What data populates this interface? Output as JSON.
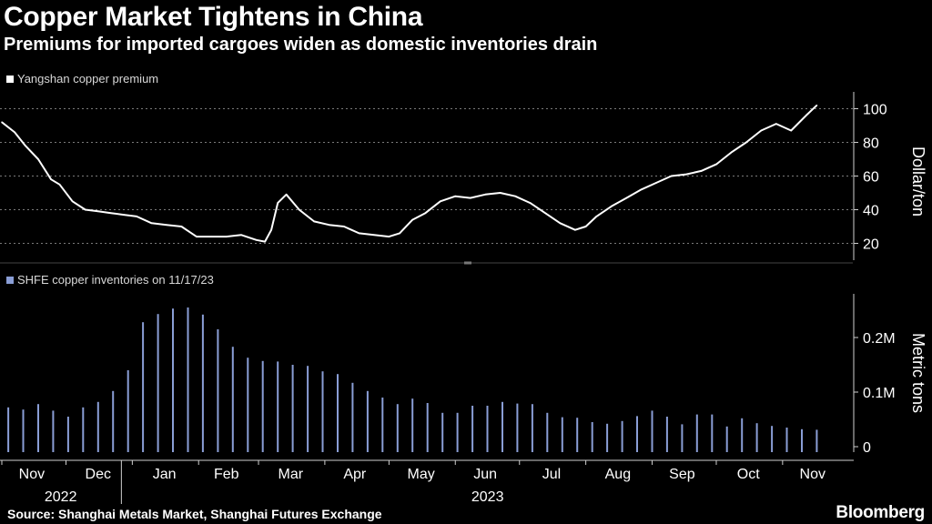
{
  "header": {
    "title": "Copper Market Tightens in China",
    "subtitle": "Premiums for imported cargoes widen as domestic inventories drain"
  },
  "footer": {
    "source": "Source: Shanghai Metals Market, Shanghai Futures Exchange",
    "brand": "Bloomberg"
  },
  "colors": {
    "background": "#000000",
    "premium_line": "#ffffff",
    "inventory_bars": "#8a9ed6",
    "axis": "#cfcfcf",
    "divider": "#555555"
  },
  "chart_data": [
    {
      "type": "line",
      "title": "Yangshan copper premium",
      "legend": "Yangshan copper premium",
      "ylabel": "Dollar/ton",
      "ylim": [
        10,
        110
      ],
      "yticks": [
        20,
        40,
        60,
        80,
        100
      ],
      "xlim": [
        "2022-11-01",
        "2023-11-30"
      ],
      "series": [
        {
          "name": "Yangshan copper premium",
          "x": [
            "2022-11-01",
            "2022-11-07",
            "2022-11-12",
            "2022-11-18",
            "2022-11-24",
            "2022-11-28",
            "2022-12-04",
            "2022-12-10",
            "2022-12-16",
            "2022-12-22",
            "2022-12-28",
            "2023-01-03",
            "2023-01-10",
            "2023-01-17",
            "2023-01-24",
            "2023-01-31",
            "2023-02-07",
            "2023-02-14",
            "2023-02-21",
            "2023-02-28",
            "2023-03-04",
            "2023-03-07",
            "2023-03-10",
            "2023-03-14",
            "2023-03-20",
            "2023-03-27",
            "2023-04-03",
            "2023-04-10",
            "2023-04-17",
            "2023-04-24",
            "2023-05-01",
            "2023-05-06",
            "2023-05-12",
            "2023-05-18",
            "2023-05-25",
            "2023-06-01",
            "2023-06-08",
            "2023-06-15",
            "2023-06-22",
            "2023-06-29",
            "2023-07-06",
            "2023-07-13",
            "2023-07-20",
            "2023-07-27",
            "2023-08-01",
            "2023-08-06",
            "2023-08-13",
            "2023-08-20",
            "2023-08-27",
            "2023-09-03",
            "2023-09-10",
            "2023-09-17",
            "2023-09-24",
            "2023-10-01",
            "2023-10-08",
            "2023-10-15",
            "2023-10-22",
            "2023-10-29",
            "2023-11-05",
            "2023-11-12",
            "2023-11-17"
          ],
          "values": [
            92,
            86,
            78,
            70,
            58,
            55,
            45,
            40,
            39,
            38,
            37,
            36,
            32,
            31,
            30,
            24,
            24,
            24,
            25,
            22,
            21,
            28,
            44,
            49,
            40,
            33,
            31,
            30,
            26,
            25,
            24,
            26,
            34,
            38,
            45,
            48,
            47,
            49,
            50,
            48,
            44,
            38,
            32,
            28,
            30,
            36,
            42,
            47,
            52,
            56,
            60,
            61,
            63,
            67,
            74,
            80,
            87,
            91,
            87,
            96,
            102
          ]
        }
      ]
    },
    {
      "type": "bar",
      "title": "SHFE copper inventories on 11/17/23",
      "legend": "SHFE copper inventories on 11/17/23",
      "ylabel": "Metric tons",
      "ylim": [
        -10000,
        280000
      ],
      "yticks": [
        0,
        100000,
        200000
      ],
      "ytick_labels": [
        "0",
        "0.1M",
        "0.2M"
      ],
      "x": [
        "2022-11-04",
        "2022-11-11",
        "2022-11-18",
        "2022-11-25",
        "2022-12-02",
        "2022-12-09",
        "2022-12-16",
        "2022-12-23",
        "2022-12-30",
        "2023-01-06",
        "2023-01-13",
        "2023-01-20",
        "2023-01-27",
        "2023-02-03",
        "2023-02-10",
        "2023-02-17",
        "2023-02-24",
        "2023-03-03",
        "2023-03-10",
        "2023-03-17",
        "2023-03-24",
        "2023-03-31",
        "2023-04-07",
        "2023-04-14",
        "2023-04-21",
        "2023-04-28",
        "2023-05-05",
        "2023-05-12",
        "2023-05-19",
        "2023-05-26",
        "2023-06-02",
        "2023-06-09",
        "2023-06-16",
        "2023-06-23",
        "2023-06-30",
        "2023-07-07",
        "2023-07-14",
        "2023-07-21",
        "2023-07-28",
        "2023-08-04",
        "2023-08-11",
        "2023-08-18",
        "2023-08-25",
        "2023-09-01",
        "2023-09-08",
        "2023-09-15",
        "2023-09-22",
        "2023-09-29",
        "2023-10-06",
        "2023-10-13",
        "2023-10-20",
        "2023-10-27",
        "2023-11-03",
        "2023-11-10",
        "2023-11-17"
      ],
      "values": [
        72000,
        68000,
        78000,
        66000,
        55000,
        72000,
        82000,
        102000,
        140000,
        228000,
        243000,
        253000,
        255000,
        242000,
        215000,
        183000,
        163000,
        157000,
        156000,
        150000,
        148000,
        138000,
        133000,
        117000,
        102000,
        90000,
        78000,
        88000,
        80000,
        62000,
        62000,
        75000,
        75000,
        82000,
        79000,
        78000,
        62000,
        54000,
        53000,
        45000,
        42000,
        47000,
        56000,
        66000,
        55000,
        41000,
        59000,
        59000,
        37000,
        52000,
        43000,
        38000,
        35000,
        32000,
        31000
      ]
    }
  ],
  "x_axis": {
    "month_labels": [
      "Nov",
      "Dec",
      "Jan",
      "Feb",
      "Mar",
      "Apr",
      "May",
      "Jun",
      "Jul",
      "Aug",
      "Sep",
      "Oct",
      "Nov"
    ],
    "year_labels": [
      "2022",
      "2023"
    ]
  }
}
